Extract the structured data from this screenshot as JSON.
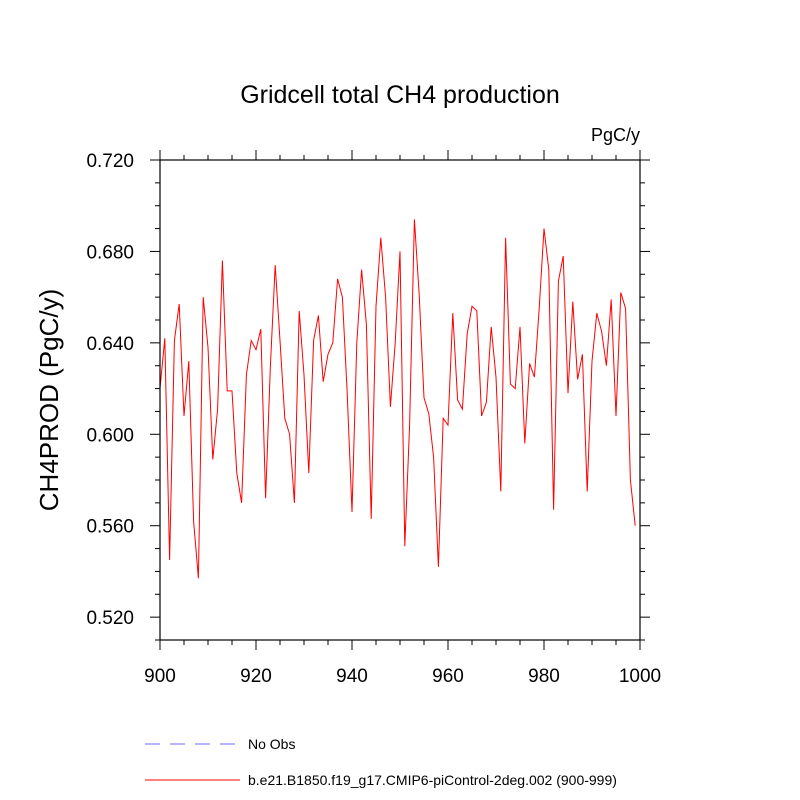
{
  "chart_data": {
    "type": "line",
    "title": "Gridcell total CH4 production",
    "units_label": "PgC/y",
    "xlabel": "",
    "ylabel": "CH4PROD  (PgC/y)",
    "xlim": [
      900,
      1000
    ],
    "ylim": [
      0.51,
      0.72
    ],
    "x_ticks": [
      900,
      920,
      940,
      960,
      980,
      1000
    ],
    "x_tick_labels": [
      "900",
      "920",
      "940",
      "960",
      "980",
      "1000"
    ],
    "y_ticks": [
      0.52,
      0.56,
      0.6,
      0.64,
      0.68,
      0.72
    ],
    "y_tick_labels": [
      "0.520",
      "0.560",
      "0.600",
      "0.640",
      "0.680",
      "0.720"
    ],
    "legend": [
      {
        "label": "No Obs",
        "style": "dashed",
        "color": "#6b6bff"
      },
      {
        "label": "b.e21.B1850.f19_g17.CMIP6-piControl-2deg.002 (900-999)",
        "style": "solid",
        "color": "#ff0000"
      }
    ],
    "series": [
      {
        "name": "b.e21.B1850.f19_g17.CMIP6-piControl-2deg.002 (900-999)",
        "color": "#ff0000",
        "x_start": 900,
        "values": [
          0.62,
          0.642,
          0.545,
          0.641,
          0.657,
          0.608,
          0.632,
          0.562,
          0.537,
          0.66,
          0.638,
          0.589,
          0.611,
          0.676,
          0.619,
          0.619,
          0.583,
          0.57,
          0.626,
          0.641,
          0.637,
          0.646,
          0.572,
          0.63,
          0.674,
          0.641,
          0.607,
          0.6,
          0.57,
          0.654,
          0.626,
          0.583,
          0.641,
          0.652,
          0.623,
          0.635,
          0.64,
          0.668,
          0.66,
          0.618,
          0.566,
          0.64,
          0.672,
          0.648,
          0.563,
          0.656,
          0.686,
          0.66,
          0.612,
          0.64,
          0.68,
          0.551,
          0.604,
          0.694,
          0.661,
          0.616,
          0.609,
          0.59,
          0.542,
          0.607,
          0.604,
          0.653,
          0.615,
          0.611,
          0.644,
          0.656,
          0.654,
          0.608,
          0.614,
          0.647,
          0.625,
          0.575,
          0.686,
          0.622,
          0.62,
          0.647,
          0.596,
          0.631,
          0.625,
          0.655,
          0.69,
          0.672,
          0.567,
          0.667,
          0.678,
          0.618,
          0.658,
          0.624,
          0.635,
          0.575,
          0.632,
          0.653,
          0.645,
          0.63,
          0.659,
          0.608,
          0.662,
          0.655,
          0.58,
          0.56
        ]
      }
    ]
  }
}
